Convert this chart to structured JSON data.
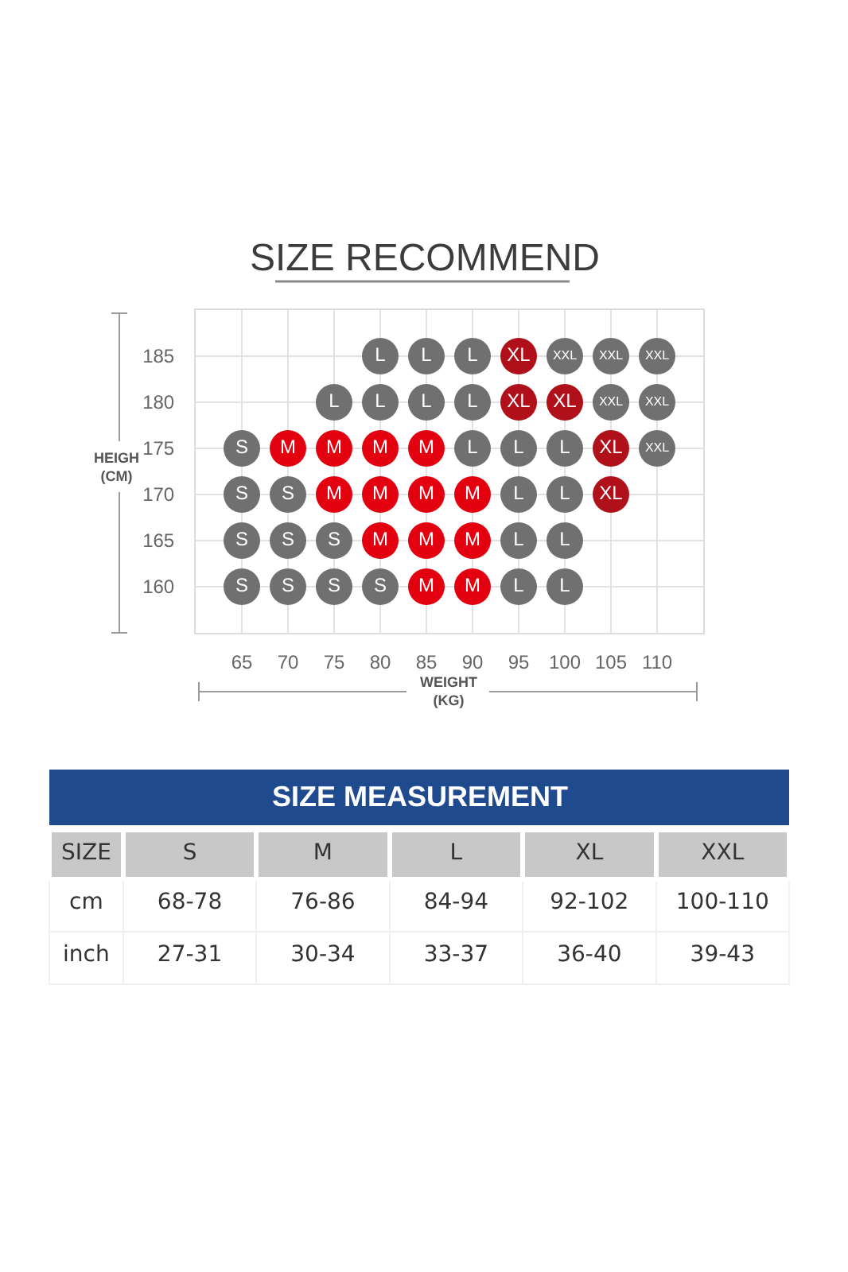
{
  "chart_data": [
    {
      "type": "scatter",
      "title": "SIZE RECOMMEND",
      "xlabel": "WEIGHT\n(KG)",
      "ylabel": "HEIGH\n(CM)",
      "xlim": [
        60,
        115
      ],
      "xticks": [
        65,
        70,
        75,
        80,
        85,
        90,
        95,
        100,
        105,
        110
      ],
      "ylim": [
        155,
        190
      ],
      "yticks": [
        160,
        165,
        170,
        175,
        180,
        185
      ],
      "grid": true,
      "marker": "circle",
      "legend": false,
      "series": [
        {
          "name": "S",
          "color": "#707070",
          "x": [
            65,
            65,
            70,
            65,
            70,
            75,
            65,
            70,
            75,
            80
          ],
          "values": [
            175,
            170,
            170,
            165,
            165,
            165,
            160,
            160,
            160,
            160
          ]
        },
        {
          "name": "M",
          "color": "#e3000f",
          "x": [
            70,
            75,
            80,
            85,
            75,
            80,
            85,
            90,
            80,
            85,
            90,
            85,
            90
          ],
          "values": [
            175,
            175,
            175,
            175,
            170,
            170,
            170,
            170,
            165,
            165,
            165,
            160,
            160
          ]
        },
        {
          "name": "L",
          "color": "#707070",
          "x": [
            80,
            85,
            90,
            75,
            80,
            85,
            90,
            90,
            95,
            100,
            95,
            100,
            95,
            100,
            95,
            100
          ],
          "values": [
            185,
            185,
            185,
            180,
            180,
            180,
            180,
            175,
            175,
            175,
            170,
            170,
            165,
            165,
            160,
            160
          ]
        },
        {
          "name": "XL",
          "color": "#b0101a",
          "x": [
            95,
            95,
            100,
            105,
            105
          ],
          "values": [
            185,
            180,
            180,
            175,
            170
          ]
        },
        {
          "name": "XXL",
          "color": "#707070",
          "x": [
            100,
            105,
            110,
            105,
            110,
            110
          ],
          "values": [
            185,
            185,
            185,
            180,
            180,
            175
          ]
        }
      ]
    },
    {
      "type": "other",
      "title": "SIZE MEASUREMENT",
      "xlabel": "SIZE",
      "categories": [
        "S",
        "M",
        "L",
        "XL",
        "XXL"
      ],
      "y_categories": [
        "cm",
        "inch"
      ],
      "cell_labels": [
        [
          "68-78",
          "76-86",
          "84-94",
          "92-102",
          "100-110"
        ],
        [
          "27-31",
          "30-34",
          "33-37",
          "36-40",
          "39-43"
        ]
      ]
    }
  ]
}
